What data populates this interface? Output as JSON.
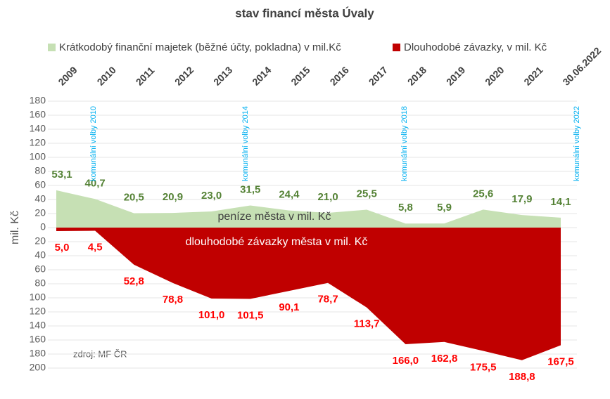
{
  "chart_data": {
    "type": "area",
    "title": "stav financí města Úvaly",
    "y_label": "mil. Kč",
    "categories": [
      "2009",
      "2010",
      "2011",
      "2012",
      "2013",
      "2014",
      "2015",
      "2016",
      "2017",
      "2018",
      "2019",
      "2020",
      "2021",
      "30.06.2022"
    ],
    "series": [
      {
        "name": "Krátkodobý finanční majetek (běžné účty, pokladna) v mil.Kč",
        "color": "#c6e0b4",
        "label_color": "#548235",
        "values": [
          53.1,
          40.7,
          20.5,
          20.9,
          23.0,
          31.5,
          24.4,
          21.0,
          25.5,
          5.8,
          5.9,
          25.6,
          17.9,
          14.1
        ],
        "value_labels": [
          "53,1",
          "40,7",
          "20,5",
          "20,9",
          "23,0",
          "31,5",
          "24,4",
          "21,0",
          "25,5",
          "5,8",
          "5,9",
          "25,6",
          "17,9",
          "14,1"
        ]
      },
      {
        "name": "Dlouhodobé závazky, v mil. Kč",
        "color": "#c00000",
        "label_color": "#ff0000",
        "values": [
          -5.0,
          -4.5,
          -52.8,
          -78.8,
          -101.0,
          -101.5,
          -90.1,
          -78.7,
          -113.7,
          -166.0,
          -162.8,
          -175.5,
          -188.8,
          -167.5
        ],
        "value_labels": [
          "5,0",
          "4,5",
          "52,8",
          "78,8",
          "101,0",
          "101,5",
          "90,1",
          "78,7",
          "113,7",
          "166,0",
          "162,8",
          "175,5",
          "188,8",
          "167,5"
        ]
      }
    ],
    "ylim": [
      -200,
      180
    ],
    "yticks": [
      180,
      160,
      140,
      120,
      100,
      80,
      60,
      40,
      20,
      0,
      {
        "value": -20,
        "label": "20"
      },
      {
        "value": -40,
        "label": "40"
      },
      {
        "value": -60,
        "label": "60"
      },
      {
        "value": -80,
        "label": "80"
      },
      {
        "value": -100,
        "label": "100"
      },
      {
        "value": -120,
        "label": "120"
      },
      {
        "value": -140,
        "label": "140"
      },
      {
        "value": -160,
        "label": "160"
      },
      {
        "value": -180,
        "label": "180"
      },
      {
        "value": -200,
        "label": "200"
      }
    ],
    "grid": true,
    "legend": "top",
    "annotations": [
      "komunální volby 2010",
      "komunální volby 2014",
      "komunální volby 2018",
      "komunální volby 2022"
    ],
    "area_labels": [
      "peníze města v mil. Kč",
      "dlouhodobé závazky města v mil. Kč"
    ],
    "source": "zdroj: MF ČR"
  }
}
